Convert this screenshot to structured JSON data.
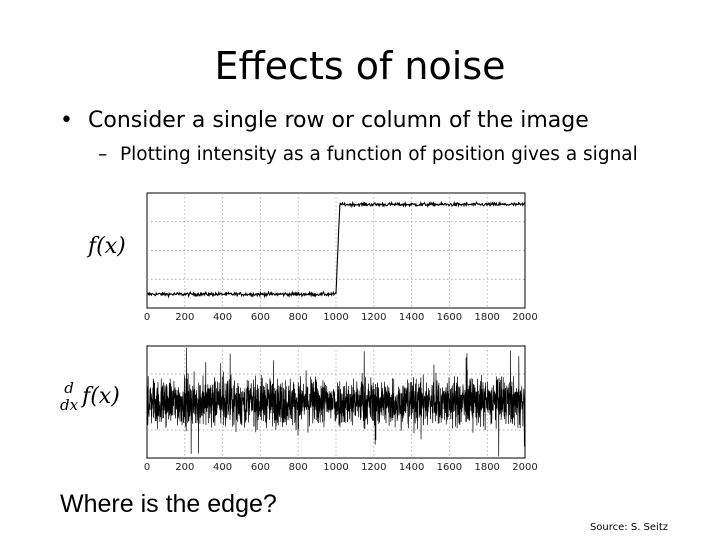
{
  "slide": {
    "title": "Effects of noise",
    "bullet1": "Consider a single row or column of the image",
    "bullet1_marker": "•",
    "bullet2": "Plotting intensity as a function of position gives a signal",
    "bullet2_marker": "–",
    "label_signal": "f(x)",
    "label_derivative_num": "d",
    "label_derivative_den": "dx",
    "label_derivative_fn": "f(x)",
    "question": "Where is the edge?",
    "source": "Source: S. Seitz"
  },
  "chart_data": [
    {
      "type": "line",
      "title": "",
      "xlabel": "",
      "ylabel": "",
      "xlim": [
        0,
        2000
      ],
      "xticks": [
        0,
        200,
        400,
        600,
        800,
        1000,
        1200,
        1400,
        1600,
        1800,
        2000
      ],
      "grid": true,
      "series": [
        {
          "kind": "noisy-step",
          "step_x": 1000,
          "step_end_x": 1020,
          "low_level": 0.12,
          "high_level": 0.9,
          "noise": 0.012,
          "color": "#000000"
        }
      ]
    },
    {
      "type": "line",
      "title": "",
      "xlabel": "",
      "ylabel": "",
      "xlim": [
        0,
        2000
      ],
      "xticks": [
        0,
        200,
        400,
        600,
        800,
        1000,
        1200,
        1400,
        1600,
        1800,
        2000
      ],
      "grid": true,
      "series": [
        {
          "kind": "noise",
          "amplitude": 0.45,
          "color": "#000000"
        }
      ]
    }
  ]
}
